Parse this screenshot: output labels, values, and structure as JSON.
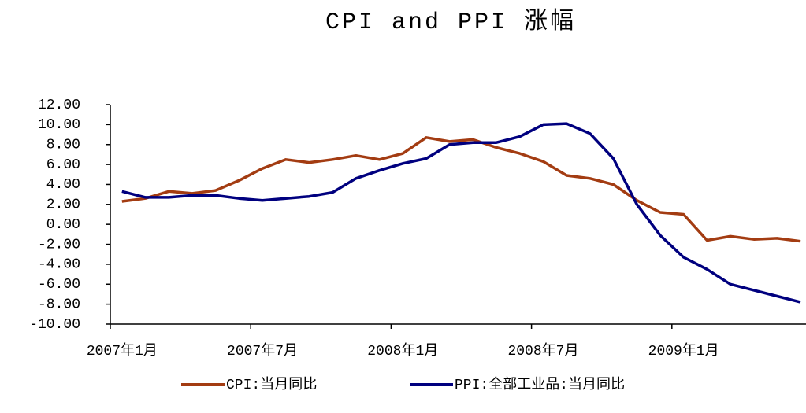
{
  "chart_data": {
    "type": "line",
    "title": "CPI and PPI 涨幅",
    "categories": [
      "2007年1月",
      null,
      null,
      null,
      null,
      null,
      "2007年7月",
      null,
      null,
      null,
      null,
      null,
      "2008年1月",
      null,
      null,
      null,
      null,
      null,
      "2008年7月",
      null,
      null,
      null,
      null,
      null,
      "2009年1月",
      null,
      null,
      null,
      null,
      null
    ],
    "series": [
      {
        "name": "CPI:当月同比",
        "color": "#a33c12",
        "values": [
          2.3,
          2.6,
          3.3,
          3.1,
          3.4,
          4.4,
          5.6,
          6.5,
          6.2,
          6.5,
          6.9,
          6.5,
          7.1,
          8.7,
          8.3,
          8.5,
          7.7,
          7.1,
          6.3,
          4.9,
          4.6,
          4.0,
          2.4,
          1.2,
          1.0,
          -1.6,
          -1.2,
          -1.5,
          -1.4,
          -1.7
        ]
      },
      {
        "name": "PPI:全部工业品:当月同比",
        "color": "#00007f",
        "values": [
          3.3,
          2.7,
          2.7,
          2.9,
          2.9,
          2.6,
          2.4,
          2.6,
          2.8,
          3.2,
          4.6,
          5.4,
          6.1,
          6.6,
          8.0,
          8.2,
          8.2,
          8.8,
          10.0,
          10.1,
          9.1,
          6.6,
          2.0,
          -1.1,
          -3.3,
          -4.5,
          -6.0,
          -6.6,
          -7.2,
          -7.8
        ]
      }
    ],
    "ylim": [
      -10,
      12
    ],
    "yticks": [
      {
        "value": -10,
        "label": "-10.00"
      },
      {
        "value": -8,
        "label": "-8.00"
      },
      {
        "value": -6,
        "label": "-6.00"
      },
      {
        "value": -4,
        "label": "-4.00"
      },
      {
        "value": -2,
        "label": "-2.00"
      },
      {
        "value": 0,
        "label": "0.00"
      },
      {
        "value": 2,
        "label": "2.00"
      },
      {
        "value": 4,
        "label": "4.00"
      },
      {
        "value": 6,
        "label": "6.00"
      },
      {
        "value": 8,
        "label": "8.00"
      },
      {
        "value": 10,
        "label": "10.00"
      },
      {
        "value": 12,
        "label": "12.00"
      }
    ],
    "grid": false,
    "legend": "bottom"
  }
}
